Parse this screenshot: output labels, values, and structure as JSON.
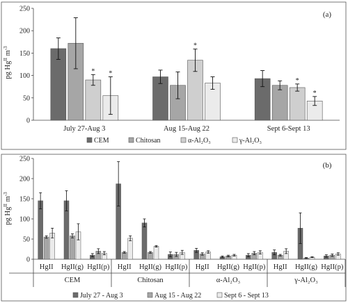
{
  "chart_data": [
    {
      "type": "bar",
      "panel_label": "(a)",
      "ylabel": "pg Hgᴵᴵ m⁻³",
      "ylabel_parts": {
        "base": "pg Hg",
        "sup": "II",
        "unit": " m",
        "unit_sup": "-3"
      },
      "ylim": [
        0,
        250
      ],
      "yticks": [
        0,
        50,
        100,
        150,
        200,
        250
      ],
      "ytick_labels": [
        "0",
        "50",
        "100",
        "150",
        "200",
        "250"
      ],
      "categories": [
        "July 27-Aug 3",
        "Aug 15-Aug 22",
        "Sept 6-Sept 13"
      ],
      "series": [
        {
          "name": "CEM",
          "color": "#6b6b6b",
          "values": [
            160,
            97,
            93
          ],
          "err": [
            24,
            15,
            18
          ],
          "stars": [
            false,
            false,
            false
          ]
        },
        {
          "name": "Chitosan",
          "color": "#a6a6a6",
          "values": [
            172,
            78,
            78
          ],
          "err": [
            57,
            30,
            10
          ],
          "stars": [
            false,
            false,
            false
          ]
        },
        {
          "name": "α-Al₂O₃",
          "color": "#cfcfcf",
          "values": [
            90,
            134,
            73
          ],
          "err": [
            12,
            25,
            8
          ],
          "stars": [
            true,
            true,
            true
          ]
        },
        {
          "name": "γ-Al₂O₃",
          "color": "#ebebeb",
          "values": [
            55,
            83,
            43
          ],
          "err": [
            42,
            14,
            10
          ],
          "stars": [
            true,
            false,
            true
          ]
        }
      ],
      "star_symbol": "*",
      "legend_position": "bottom",
      "grid": false
    },
    {
      "type": "bar",
      "panel_label": "(b)",
      "ylabel": "pg Hgᴵᴵ m⁻³",
      "ylabel_parts": {
        "base": "pg Hg",
        "sup": "II",
        "unit": " m",
        "unit_sup": "-3"
      },
      "ylim": [
        0,
        250
      ],
      "yticks": [
        0,
        50,
        100,
        150,
        200,
        250
      ],
      "ytick_labels": [
        "0",
        "50",
        "100",
        "150",
        "200",
        "250"
      ],
      "groups": [
        "CEM",
        "Chitosan",
        "α-Al₂O₃",
        "γ-Al₂O₃"
      ],
      "subcategories": [
        "HgII",
        "HgII(g)",
        "HgII(p)"
      ],
      "series": [
        {
          "name": "July 27 - Aug 3",
          "color": "#6b6b6b",
          "values": [
            145,
            145,
            10,
            187,
            90,
            12,
            22,
            6,
            10,
            17,
            77,
            8
          ],
          "err": [
            20,
            25,
            4,
            55,
            10,
            6,
            5,
            2,
            4,
            6,
            38,
            3
          ]
        },
        {
          "name": "Aug 15 - Aug 22",
          "color": "#a6a6a6",
          "values": [
            55,
            58,
            20,
            17,
            17,
            12,
            13,
            8,
            15,
            10,
            3,
            10
          ],
          "err": [
            3,
            5,
            6,
            2,
            2,
            5,
            3,
            2,
            4,
            2,
            1,
            3
          ]
        },
        {
          "name": "Sept 6 - Sept 13",
          "color": "#ebebeb",
          "values": [
            65,
            68,
            15,
            52,
            32,
            17,
            18,
            10,
            17,
            20,
            5,
            13
          ],
          "err": [
            12,
            20,
            4,
            6,
            2,
            5,
            3,
            2,
            4,
            6,
            1,
            3
          ]
        }
      ],
      "legend_position": "bottom",
      "grid": false
    }
  ]
}
